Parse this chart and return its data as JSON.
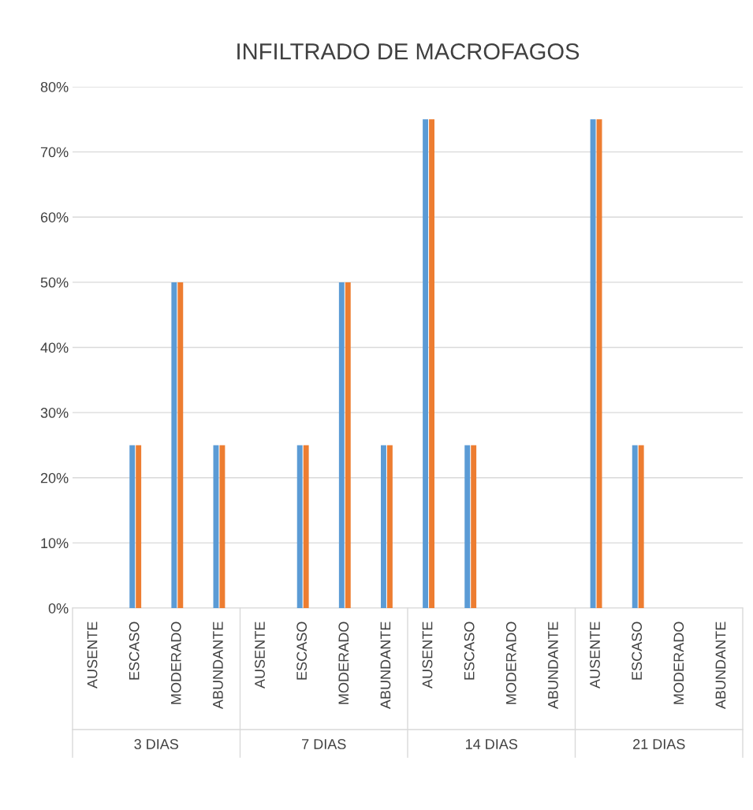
{
  "chart_data": {
    "type": "bar",
    "title": "INFILTRADO DE MACROFAGOS",
    "categories": [
      "AUSENTE",
      "ESCASO",
      "MODERADO",
      "ABUNDANTE",
      "AUSENTE",
      "ESCASO",
      "MODERADO",
      "ABUNDANTE",
      "AUSENTE",
      "ESCASO",
      "MODERADO",
      "ABUNDANTE",
      "AUSENTE",
      "ESCASO",
      "MODERADO",
      "ABUNDANTE"
    ],
    "annotations": [
      "3 DIAS",
      "7 DIAS",
      "14 DIAS",
      "21 DIAS"
    ],
    "series": [
      {
        "color": "#5b9bd5",
        "values": [
          0,
          25,
          50,
          25,
          0,
          25,
          50,
          25,
          75,
          25,
          0,
          0,
          75,
          25,
          0,
          0
        ]
      },
      {
        "color": "#ed7d31",
        "values": [
          0,
          25,
          50,
          25,
          0,
          25,
          50,
          25,
          75,
          25,
          0,
          0,
          75,
          25,
          0,
          0
        ]
      }
    ],
    "ylim": [
      0,
      80
    ],
    "yticks": [
      {
        "value": 0,
        "label": "0%"
      },
      {
        "value": 10,
        "label": "10%"
      },
      {
        "value": 20,
        "label": "20%"
      },
      {
        "value": 30,
        "label": "30%"
      },
      {
        "value": 40,
        "label": "40%"
      },
      {
        "value": 50,
        "label": "50%"
      },
      {
        "value": 60,
        "label": "60%"
      },
      {
        "value": 70,
        "label": "70%"
      },
      {
        "value": 80,
        "label": "80%"
      }
    ],
    "grid": "y"
  }
}
